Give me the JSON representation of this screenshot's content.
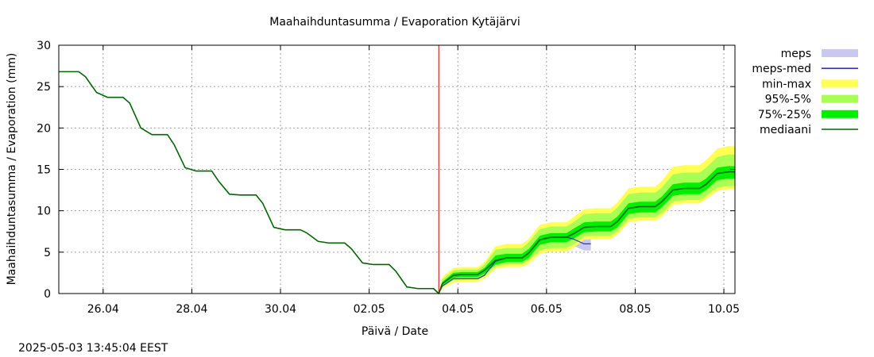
{
  "chart_data": {
    "type": "line",
    "title": "Maahaihduntasumma / Evaporation   Kytäjärvi",
    "xlabel": "Päivä / Date",
    "ylabel": "Maahaihduntasumma / Evaporation (mm)",
    "ylim": [
      0,
      30
    ],
    "xlim_days": [
      0,
      15.25
    ],
    "x_origin": "25.04",
    "y_ticks": [
      0,
      5,
      10,
      15,
      20,
      25,
      30
    ],
    "x_ticks": [
      {
        "day": 1,
        "label": "26.04"
      },
      {
        "day": 3,
        "label": "28.04"
      },
      {
        "day": 5,
        "label": "30.04"
      },
      {
        "day": 7,
        "label": "02.05"
      },
      {
        "day": 9,
        "label": "04.05"
      },
      {
        "day": 11,
        "label": "06.05"
      },
      {
        "day": 13,
        "label": "08.05"
      },
      {
        "day": 15,
        "label": "10.05"
      }
    ],
    "forecast_start_day": 8.57,
    "forecast_marker_color": "#cc0000",
    "legend": [
      {
        "label": "meps",
        "kind": "band",
        "color": "#c8c8f0"
      },
      {
        "label": "meps-med",
        "kind": "line",
        "color": "#3333bb"
      },
      {
        "label": "min-max",
        "kind": "band",
        "color": "#ffff55"
      },
      {
        "label": "95%-5%",
        "kind": "band",
        "color": "#aaff55"
      },
      {
        "label": "75%-25%",
        "kind": "band",
        "color": "#00ee00"
      },
      {
        "label": "mediaani",
        "kind": "line",
        "color": "#006600"
      }
    ],
    "series": [
      {
        "name": "mediaani",
        "color": "#006600",
        "x": [
          0,
          0.45,
          0.6,
          0.85,
          1.1,
          1.45,
          1.6,
          1.85,
          2.1,
          2.45,
          2.6,
          2.85,
          3.1,
          3.45,
          3.6,
          3.85,
          4.1,
          4.45,
          4.6,
          4.85,
          5.1,
          5.45,
          5.6,
          5.85,
          6.1,
          6.45,
          6.6,
          6.85,
          7.1,
          7.45,
          7.6,
          7.85,
          8.1,
          8.45,
          8.57,
          8.65,
          8.9,
          9.1,
          9.45,
          9.6,
          9.85,
          10.1,
          10.45,
          10.6,
          10.85,
          11.1,
          11.45,
          11.6,
          11.85,
          12.1,
          12.45,
          12.6,
          12.85,
          13.1,
          13.45,
          13.6,
          13.85,
          14.1,
          14.45,
          14.6,
          14.85,
          15.1,
          15.25
        ],
        "values": [
          26.8,
          26.8,
          26.2,
          24.3,
          23.7,
          23.7,
          23.0,
          20.0,
          19.2,
          19.2,
          18.0,
          15.2,
          14.8,
          14.8,
          13.6,
          12.0,
          11.9,
          11.9,
          10.9,
          8.0,
          7.7,
          7.7,
          7.3,
          6.3,
          6.1,
          6.1,
          5.4,
          3.7,
          3.5,
          3.5,
          2.7,
          0.8,
          0.6,
          0.6,
          0.0,
          1.2,
          2.2,
          2.3,
          2.3,
          2.8,
          4.0,
          4.3,
          4.3,
          4.9,
          6.5,
          6.8,
          6.8,
          7.2,
          8.0,
          8.1,
          8.1,
          8.7,
          10.3,
          10.5,
          10.5,
          11.1,
          12.5,
          12.7,
          12.7,
          13.2,
          14.5,
          14.7,
          14.7
        ]
      },
      {
        "name": "meps-med",
        "color": "#3333bb",
        "x": [
          8.57,
          8.65,
          8.9,
          9.1,
          9.45,
          9.6,
          9.85,
          10.1,
          10.45,
          10.6,
          10.85,
          11.1,
          11.45,
          11.6,
          11.85,
          12.0
        ],
        "values": [
          0.0,
          0.9,
          1.8,
          1.8,
          1.8,
          2.2,
          3.9,
          4.3,
          4.3,
          4.9,
          6.5,
          6.8,
          6.8,
          6.6,
          6.0,
          6.0
        ]
      }
    ],
    "bands": [
      {
        "name": "min-max",
        "color": "#ffff55",
        "x": [
          8.57,
          8.65,
          8.9,
          9.1,
          9.45,
          9.6,
          9.85,
          10.1,
          10.45,
          10.6,
          10.85,
          11.1,
          11.45,
          11.6,
          11.85,
          12.1,
          12.45,
          12.6,
          12.85,
          13.1,
          13.45,
          13.6,
          13.85,
          14.1,
          14.45,
          14.6,
          14.85,
          15.1,
          15.25
        ],
        "upper": [
          0.0,
          2.0,
          3.1,
          3.2,
          3.2,
          3.8,
          5.7,
          6.0,
          6.0,
          6.6,
          8.3,
          8.6,
          8.6,
          9.2,
          10.2,
          10.3,
          10.3,
          11.0,
          12.7,
          12.9,
          12.9,
          13.6,
          15.3,
          15.5,
          15.5,
          16.1,
          17.5,
          17.8,
          17.8
        ],
        "lower": [
          0.0,
          0.6,
          1.3,
          1.4,
          1.4,
          1.8,
          3.0,
          3.2,
          3.2,
          3.6,
          4.8,
          5.1,
          5.1,
          5.5,
          6.5,
          6.6,
          6.6,
          7.1,
          8.6,
          8.8,
          8.8,
          9.3,
          10.7,
          10.9,
          10.9,
          11.4,
          12.4,
          12.6,
          12.6
        ]
      },
      {
        "name": "95%-5%",
        "color": "#aaff55",
        "x": [
          8.57,
          8.65,
          8.9,
          9.1,
          9.45,
          9.6,
          9.85,
          10.1,
          10.45,
          10.6,
          10.85,
          11.1,
          11.45,
          11.6,
          11.85,
          12.1,
          12.45,
          12.6,
          12.85,
          13.1,
          13.45,
          13.6,
          13.85,
          14.1,
          14.45,
          14.6,
          14.85,
          15.1,
          15.25
        ],
        "upper": [
          0.0,
          1.7,
          2.8,
          2.9,
          2.9,
          3.5,
          5.3,
          5.5,
          5.5,
          6.2,
          7.8,
          8.1,
          8.1,
          8.6,
          9.6,
          9.7,
          9.7,
          10.4,
          12.0,
          12.2,
          12.2,
          12.8,
          14.4,
          14.6,
          14.6,
          15.2,
          16.5,
          16.8,
          16.8
        ],
        "lower": [
          0.0,
          0.8,
          1.6,
          1.7,
          1.7,
          2.1,
          3.3,
          3.6,
          3.6,
          4.0,
          5.2,
          5.5,
          5.5,
          5.9,
          6.9,
          7.0,
          7.0,
          7.5,
          9.0,
          9.2,
          9.2,
          9.7,
          11.1,
          11.3,
          11.3,
          11.8,
          12.8,
          13.0,
          13.0
        ]
      },
      {
        "name": "75%-25%",
        "color": "#00ee00",
        "x": [
          8.57,
          8.65,
          8.9,
          9.1,
          9.45,
          9.6,
          9.85,
          10.1,
          10.45,
          10.6,
          10.85,
          11.1,
          11.45,
          11.6,
          11.85,
          12.1,
          12.45,
          12.6,
          12.85,
          13.1,
          13.45,
          13.6,
          13.85,
          14.1,
          14.45,
          14.6,
          14.85,
          15.1,
          15.25
        ],
        "upper": [
          0.0,
          1.4,
          2.5,
          2.6,
          2.6,
          3.1,
          4.6,
          4.8,
          4.8,
          5.4,
          7.0,
          7.3,
          7.3,
          7.8,
          8.6,
          8.7,
          8.7,
          9.3,
          10.9,
          11.1,
          11.1,
          11.7,
          13.2,
          13.4,
          13.4,
          13.9,
          15.2,
          15.4,
          15.4
        ],
        "lower": [
          0.0,
          1.0,
          1.9,
          2.0,
          2.0,
          2.4,
          3.5,
          3.8,
          3.8,
          4.3,
          5.9,
          6.2,
          6.2,
          6.6,
          7.4,
          7.5,
          7.5,
          8.0,
          9.6,
          9.8,
          9.8,
          10.4,
          11.8,
          12.0,
          12.0,
          12.5,
          13.7,
          13.9,
          13.9
        ]
      },
      {
        "name": "meps",
        "color": "#c8c8f0",
        "x": [
          8.57,
          8.65,
          8.9,
          9.1,
          9.45,
          9.6,
          9.85,
          10.1,
          10.45,
          10.6,
          10.85,
          11.1,
          11.45,
          11.6,
          11.85,
          12.0
        ],
        "upper": [
          0.0,
          1.0,
          2.0,
          2.0,
          2.0,
          2.5,
          4.2,
          4.5,
          4.5,
          5.1,
          6.7,
          7.0,
          7.0,
          7.0,
          6.7,
          6.7
        ],
        "lower": [
          0.0,
          0.7,
          1.6,
          1.6,
          1.6,
          2.0,
          3.7,
          4.0,
          4.0,
          4.6,
          6.2,
          6.5,
          6.5,
          5.8,
          5.2,
          5.2
        ]
      }
    ]
  },
  "footer": {
    "timestamp": "2025-05-03 13:45:04 EEST"
  }
}
